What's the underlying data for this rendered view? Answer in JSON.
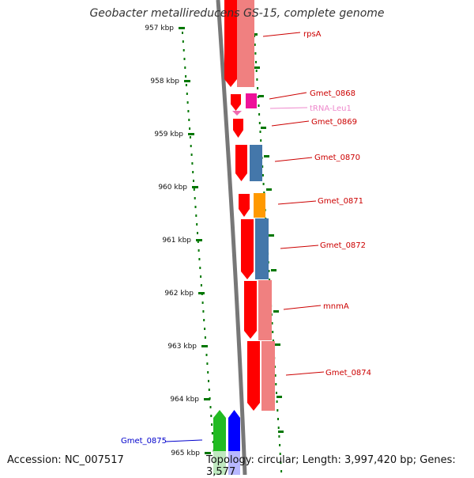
{
  "title": "Geobacter metallireducens GS-15, complete genome",
  "accession": "Accession: NC_007517",
  "summary": "Topology: circular; Length: 3,997,420 bp; Genes: 3,577",
  "ruler": {
    "ticks": [
      "957 kbp",
      "958 kbp",
      "959 kbp",
      "960 kbp",
      "961 kbp",
      "962 kbp",
      "963 kbp",
      "964 kbp",
      "965 kbp"
    ]
  },
  "genes": [
    {
      "name": "rpsA",
      "label_color": "#cc0000"
    },
    {
      "name": "Gmet_0868",
      "label_color": "#cc0000"
    },
    {
      "name": "tRNA-Leu1",
      "label_color": "#ee88cc"
    },
    {
      "name": "Gmet_0869",
      "label_color": "#cc0000"
    },
    {
      "name": "Gmet_0870",
      "label_color": "#cc0000"
    },
    {
      "name": "Gmet_0871",
      "label_color": "#cc0000"
    },
    {
      "name": "Gmet_0872",
      "label_color": "#cc0000"
    },
    {
      "name": "mnmA",
      "label_color": "#cc0000"
    },
    {
      "name": "Gmet_0874",
      "label_color": "#cc0000"
    },
    {
      "name": "Gmet_0875",
      "label_color": "#0000cc"
    }
  ],
  "colors": {
    "forward_strand": "#ff0000",
    "feature_light": "#f08080",
    "trna": "#ee1199",
    "blue_feature": "#4477aa",
    "orange_feature": "#ff9900",
    "green_feature": "#22bb22",
    "reverse_strand": "#0000ff",
    "tick_green": "#007700",
    "backbone": "#777777"
  }
}
